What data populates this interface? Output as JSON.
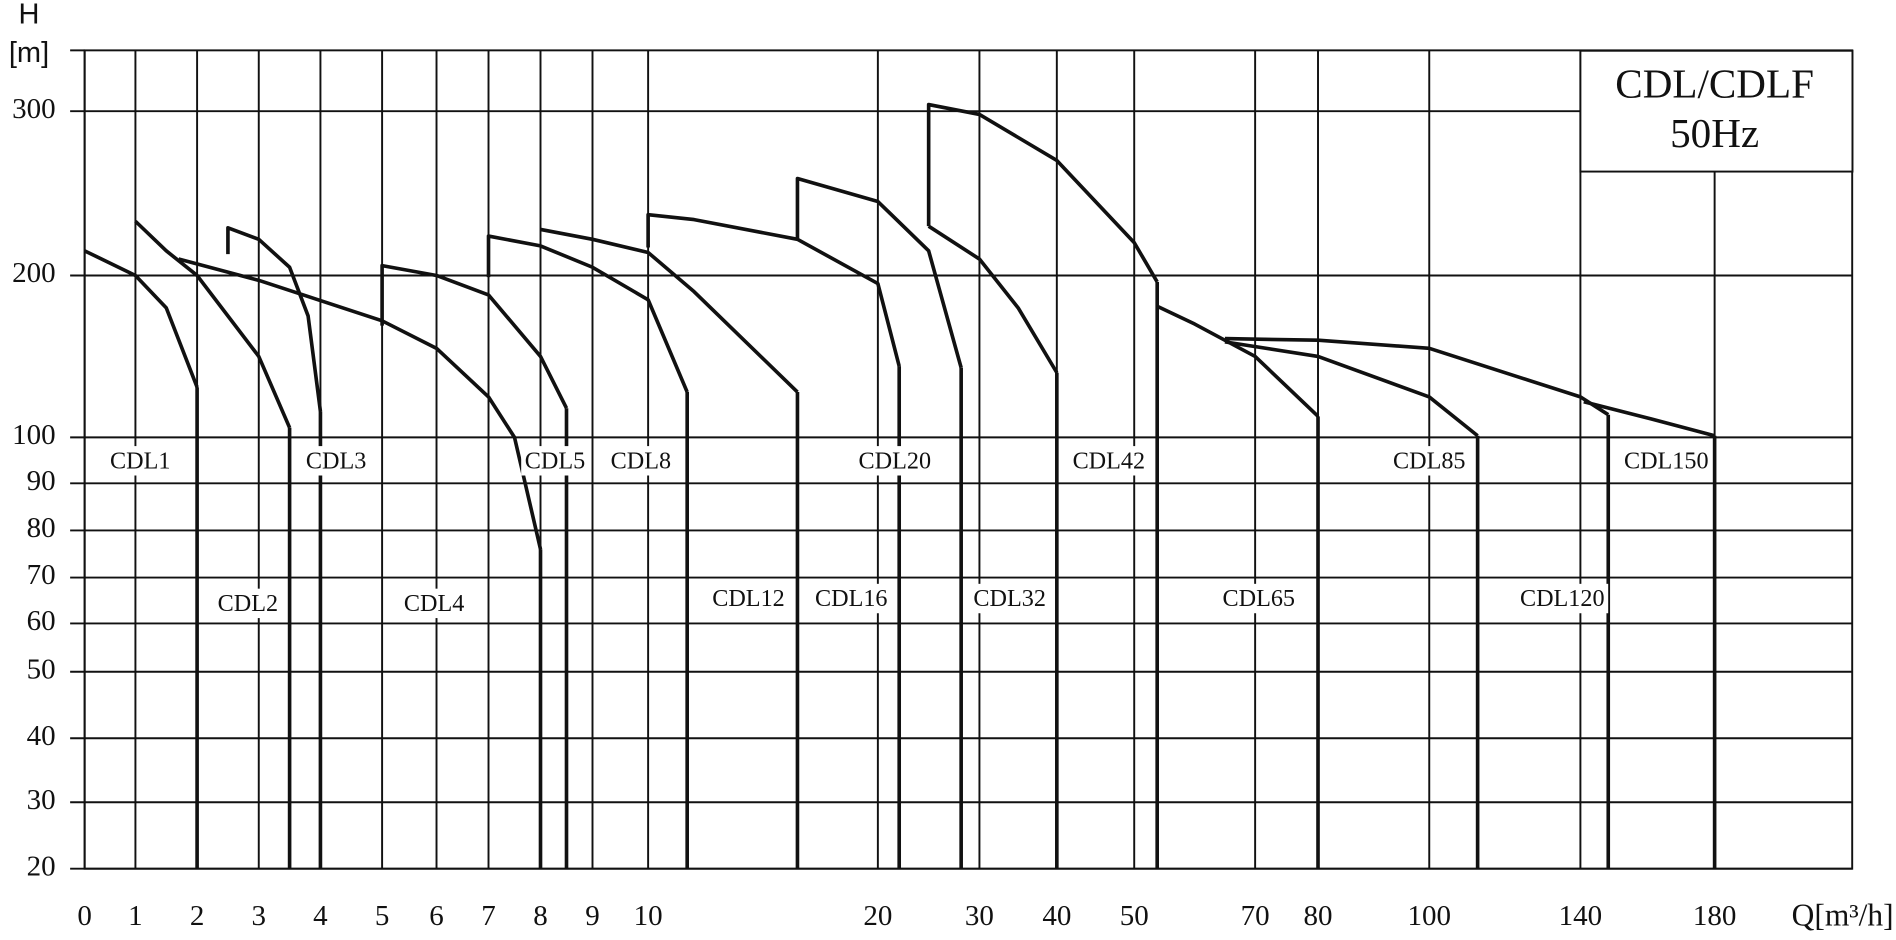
{
  "chart_data": {
    "type": "range",
    "title": "CDL/CDLF",
    "subtitle": "50Hz",
    "y_label_top": "H",
    "y_label_unit": "[m]",
    "x_label": "Q[m³/h]",
    "xlim": [
      0,
      221
    ],
    "ylim": [
      20,
      337
    ],
    "xticks": [
      0,
      1,
      2,
      3,
      4,
      5,
      6,
      7,
      8,
      9,
      10,
      20,
      30,
      40,
      50,
      70,
      80,
      100,
      140,
      180
    ],
    "yticks": [
      20,
      30,
      40,
      50,
      60,
      70,
      80,
      90,
      100,
      200,
      300
    ],
    "grid": true,
    "color": "#111111",
    "series": [
      {
        "name": "CDL1",
        "x": [
          0,
          1,
          1.5,
          2
        ],
        "values": [
          215,
          200,
          180,
          131
        ]
      },
      {
        "name": "CDL2",
        "x": [
          1,
          1.5,
          2,
          3,
          3.5
        ],
        "values": [
          233,
          215,
          200,
          150,
          106
        ]
      },
      {
        "name": "CDL3",
        "x": [
          2.5,
          2.5,
          3,
          3.5,
          3.8,
          4
        ],
        "values": [
          213,
          229,
          222,
          205,
          175,
          116
        ]
      },
      {
        "name": "CDL4",
        "x": [
          1.7,
          3,
          5,
          6,
          7,
          7.5,
          8
        ],
        "values": [
          210,
          197,
          172,
          155,
          125,
          100,
          76
        ]
      },
      {
        "name": "CDL5",
        "x": [
          5,
          5,
          6,
          7,
          8,
          8.5
        ],
        "values": [
          169,
          206,
          200,
          188,
          150,
          118
        ]
      },
      {
        "name": "CDL8",
        "x": [
          7,
          7,
          8,
          9,
          10,
          11.7
        ],
        "values": [
          199,
          224,
          218,
          205,
          185,
          128
        ]
      },
      {
        "name": "CDL12",
        "x": [
          8,
          9,
          10,
          12,
          16.5
        ],
        "values": [
          228,
          222,
          214,
          190,
          128
        ]
      },
      {
        "name": "CDL16",
        "x": [
          10,
          10,
          12,
          16.5,
          20,
          22.1
        ],
        "values": [
          217,
          237,
          234,
          222,
          195,
          144
        ]
      },
      {
        "name": "CDL20",
        "x": [
          16.5,
          16.5,
          20,
          25,
          28.2
        ],
        "values": [
          222,
          259,
          245,
          215,
          143
        ]
      },
      {
        "name": "CDL32",
        "x": [
          25,
          30,
          35,
          40
        ],
        "values": [
          230,
          210,
          180,
          140
        ]
      },
      {
        "name": "CDL42",
        "x": [
          25,
          25,
          30,
          40,
          50,
          53.8
        ],
        "values": [
          230,
          304,
          298,
          270,
          220,
          196
        ]
      },
      {
        "name": "CDL65",
        "x": [
          53.8,
          60,
          70,
          80
        ],
        "values": [
          181,
          170,
          150,
          113
        ]
      },
      {
        "name": "CDL85",
        "x": [
          65,
          80,
          100,
          112.8
        ],
        "values": [
          159,
          150,
          125,
          101
        ]
      },
      {
        "name": "CDL120",
        "x": [
          65,
          80,
          100,
          140,
          148.3
        ],
        "values": [
          161,
          160,
          155,
          125,
          114
        ]
      },
      {
        "name": "CDL150",
        "x": [
          141,
          160,
          180
        ],
        "values": [
          122,
          112,
          101
        ]
      }
    ]
  }
}
